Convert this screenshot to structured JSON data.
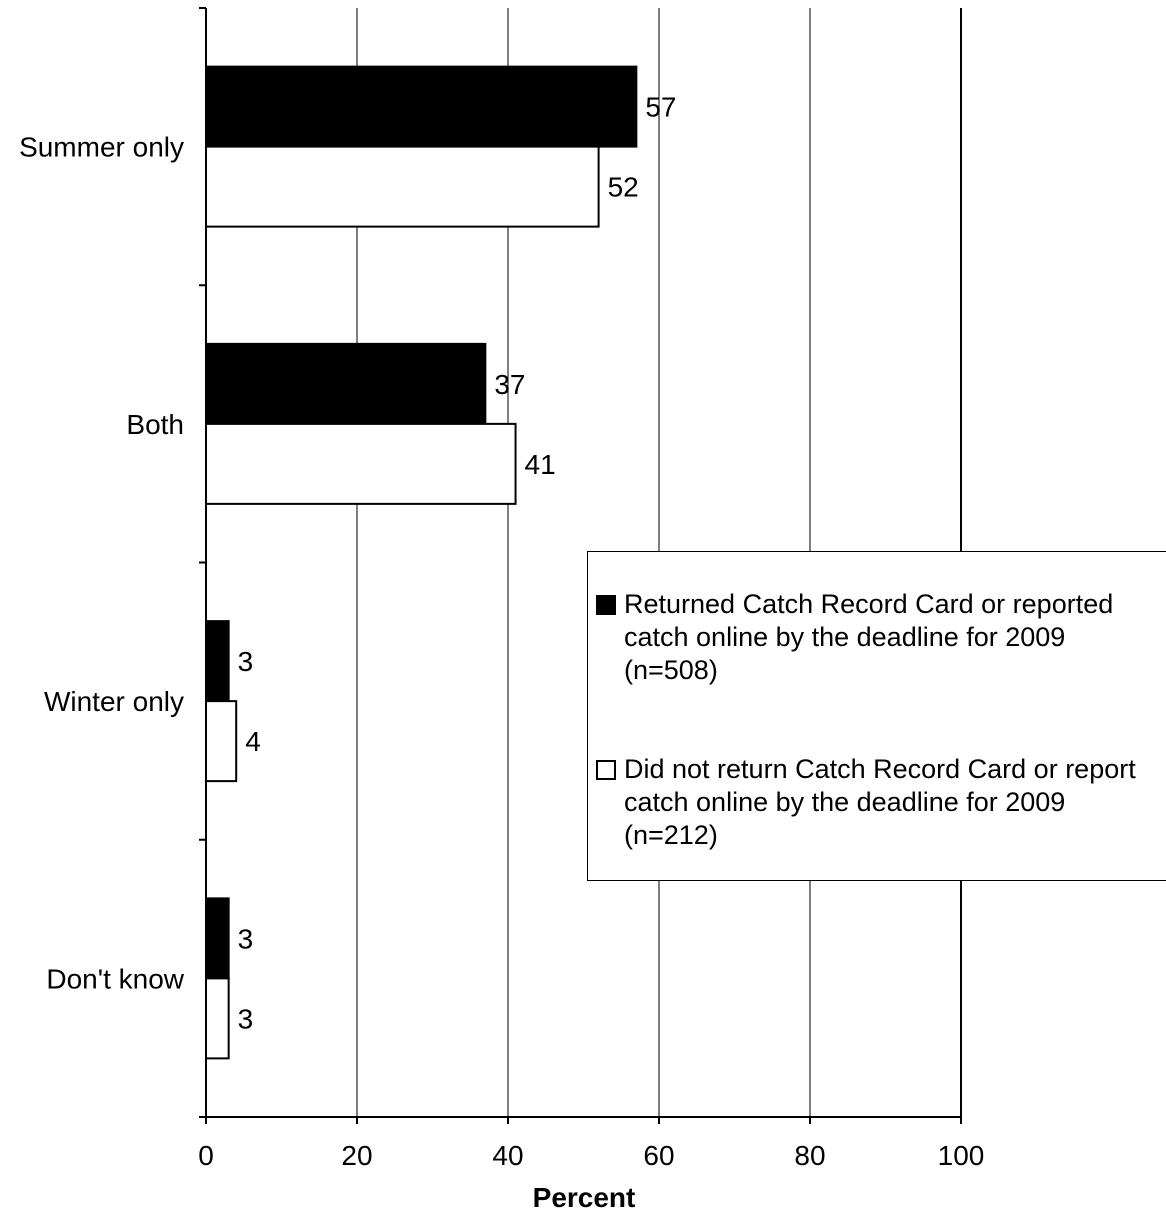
{
  "chart_data": {
    "type": "bar",
    "orientation": "horizontal",
    "categories": [
      "Summer only",
      "Both",
      "Winter only",
      "Don't know"
    ],
    "series": [
      {
        "name": "Returned Catch Record Card or reported catch online by the deadline for 2009 (n=508)",
        "values": [
          57,
          37,
          3,
          3
        ],
        "labels": [
          "57",
          "37",
          "3",
          "3"
        ],
        "color": "#000000"
      },
      {
        "name": "Did not return Catch Record Card or report catch online by the deadline for 2009 (n=212)",
        "values": [
          52,
          41,
          4,
          3
        ],
        "labels": [
          "52",
          "41",
          "4",
          "3"
        ],
        "color": "#ffffff"
      }
    ],
    "xlabel": "Percent",
    "ylabel": "",
    "xlim": [
      0,
      100
    ],
    "xticks": [
      "0",
      "20",
      "40",
      "60",
      "80",
      "100"
    ],
    "grid": "vertical",
    "legend_position": "right"
  }
}
